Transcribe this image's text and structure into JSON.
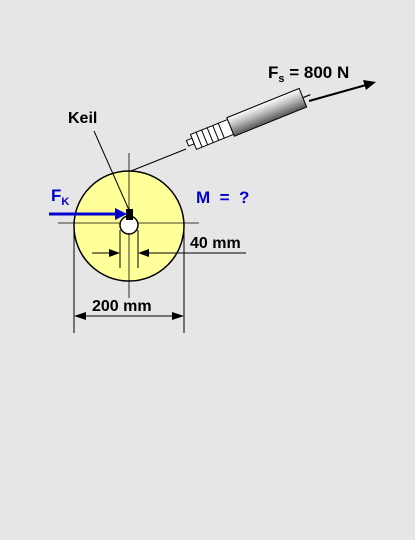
{
  "labels": {
    "fs_main": "F",
    "fs_sub": "s",
    "fs_value": " = 800 N",
    "keil": "Keil",
    "fk_main": "F",
    "fk_sub": "K",
    "moment": "M  =  ?",
    "dim_small": "40 mm",
    "dim_large": "200 mm"
  },
  "colors": {
    "background": "#e6e6e6",
    "wheel_fill": "#ffff99",
    "force_blue": "#0000cc",
    "line": "#000000"
  }
}
